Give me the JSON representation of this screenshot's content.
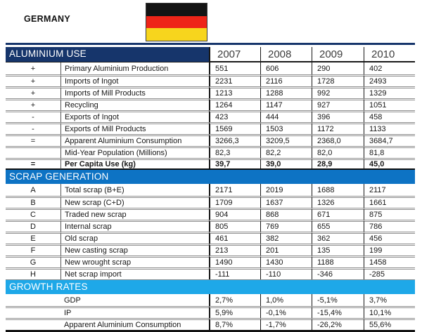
{
  "header": {
    "country": "GERMANY",
    "flag": "germany-flag"
  },
  "years": [
    "2007",
    "2008",
    "2009",
    "2010"
  ],
  "colors": {
    "navy": "#16356B",
    "scrap_blue": "#0D73C4",
    "growth_cyan": "#1EA8E8",
    "flag_black": "#141414",
    "flag_red": "#EE2418",
    "flag_gold": "#F7D51D"
  },
  "sections": [
    {
      "title": "ALUMINIUM USE",
      "rows": [
        {
          "sym": "+",
          "label": "Primary Aluminium Production",
          "values": [
            "551",
            "606",
            "290",
            "402"
          ]
        },
        {
          "sym": "+",
          "label": "Imports of Ingot",
          "values": [
            "2231",
            "2116",
            "1728",
            "2493"
          ]
        },
        {
          "sym": "+",
          "label": "Imports of Mill Products",
          "values": [
            "1213",
            "1288",
            "992",
            "1329"
          ]
        },
        {
          "sym": "+",
          "label": "Recycling",
          "values": [
            "1264",
            "1147",
            "927",
            "1051"
          ]
        },
        {
          "sym": "-",
          "label": "Exports of Ingot",
          "values": [
            "423",
            "444",
            "396",
            "458"
          ]
        },
        {
          "sym": "-",
          "label": "Exports of Mill Products",
          "values": [
            "1569",
            "1503",
            "1172",
            "1133"
          ]
        },
        {
          "sym": "=",
          "label": "Apparent Aluminium Consumption",
          "values": [
            "3266,3",
            "3209,5",
            "2368,0",
            "3684,7"
          ],
          "dark_top": true
        },
        {
          "sym": "",
          "label": "Mid-Year Population (Millions)",
          "values": [
            "82,3",
            "82,2",
            "82,0",
            "81,8"
          ]
        },
        {
          "sym": "=",
          "label": "Per Capita Use (kg)",
          "values": [
            "39,7",
            "39,0",
            "28,9",
            "45,0"
          ],
          "bold": true,
          "dark_top": true,
          "thick_bottom": true
        }
      ]
    },
    {
      "title": "SCRAP GENERATION",
      "rows": [
        {
          "sym": "A",
          "label": "Total scrap (B+E)",
          "values": [
            "2171",
            "2019",
            "1688",
            "2117"
          ]
        },
        {
          "sym": "B",
          "label": "New scrap (C+D)",
          "values": [
            "1709",
            "1637",
            "1326",
            "1661"
          ]
        },
        {
          "sym": "C",
          "label": "Traded new scrap",
          "values": [
            "904",
            "868",
            "671",
            "875"
          ]
        },
        {
          "sym": "D",
          "label": "Internal scrap",
          "values": [
            "805",
            "769",
            "655",
            "786"
          ]
        },
        {
          "sym": "E",
          "label": "Old scrap",
          "values": [
            "461",
            "382",
            "362",
            "456"
          ]
        },
        {
          "sym": "F",
          "label": "New casting scrap",
          "values": [
            "213",
            "201",
            "135",
            "199"
          ]
        },
        {
          "sym": "G",
          "label": "New wrought scrap",
          "values": [
            "1490",
            "1430",
            "1188",
            "1458"
          ]
        },
        {
          "sym": "H",
          "label": "Net scrap import",
          "values": [
            "-111",
            "-110",
            "-346",
            "-285"
          ]
        }
      ]
    },
    {
      "title": "GROWTH RATES",
      "rows": [
        {
          "sym": "",
          "label": "GDP",
          "values": [
            "2,7%",
            "1,0%",
            "-5,1%",
            "3,7%"
          ]
        },
        {
          "sym": "",
          "label": "IP",
          "values": [
            "5,9%",
            "-0,1%",
            "-15,4%",
            "10,1%"
          ]
        },
        {
          "sym": "",
          "label": "Apparent Aluminium Consumption",
          "values": [
            "8,7%",
            "-1,7%",
            "-26,2%",
            "55,6%"
          ]
        }
      ]
    }
  ]
}
